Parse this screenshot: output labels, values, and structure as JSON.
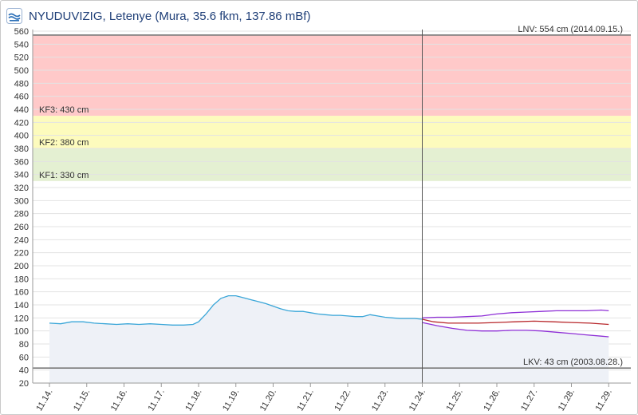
{
  "header": {
    "title": "NYUDUVIZIG, Letenye (Mura, 35.6 fkm, 137.86 mBf)",
    "logo_icon": "nyuduvizig-logo-icon"
  },
  "chart_data": {
    "type": "line",
    "title": "NYUDUVIZIG, Letenye (Mura, 35.6 fkm, 137.86 mBf)",
    "xlabel": "",
    "ylabel": "",
    "ylim": [
      20,
      560
    ],
    "y_ticks": [
      20,
      40,
      60,
      80,
      100,
      120,
      140,
      160,
      180,
      200,
      220,
      240,
      260,
      280,
      300,
      320,
      340,
      360,
      380,
      400,
      420,
      440,
      460,
      480,
      500,
      520,
      540,
      560
    ],
    "x_ticks": [
      {
        "day": 14,
        "label": "11.14."
      },
      {
        "day": 15,
        "label": "11.15."
      },
      {
        "day": 16,
        "label": "11.16."
      },
      {
        "day": 17,
        "label": "11.17."
      },
      {
        "day": 18,
        "label": "11.18."
      },
      {
        "day": 19,
        "label": "11.19."
      },
      {
        "day": 20,
        "label": "11.20."
      },
      {
        "day": 21,
        "label": "11.21."
      },
      {
        "day": 22,
        "label": "11.22."
      },
      {
        "day": 23,
        "label": "11.23."
      },
      {
        "day": 24,
        "label": "11.24."
      },
      {
        "day": 25,
        "label": "11.25."
      },
      {
        "day": 26,
        "label": "11.26."
      },
      {
        "day": 27,
        "label": "11.27."
      },
      {
        "day": 28,
        "label": "11.28."
      },
      {
        "day": 29,
        "label": "11.29."
      }
    ],
    "grid": true,
    "bands": [
      {
        "from": 430,
        "to": 554,
        "color": "#ffc9c9"
      },
      {
        "from": 380,
        "to": 430,
        "color": "#fdfbbd"
      },
      {
        "from": 330,
        "to": 380,
        "color": "#e4f0d2"
      }
    ],
    "threshold_lines": [
      {
        "value": 554,
        "label": "LNV: 554 cm (2014.09.15.)",
        "label_side": "right"
      },
      {
        "value": 430,
        "label": "KF3: 430 cm",
        "label_side": "left"
      },
      {
        "value": 380,
        "label": "KF2: 380 cm",
        "label_side": "left"
      },
      {
        "value": 330,
        "label": "KF1: 330 cm",
        "label_side": "left"
      },
      {
        "value": 43,
        "label": "LKV: 43 cm (2003.08.28.)",
        "label_side": "right"
      }
    ],
    "now_day": 24,
    "series": [
      {
        "color": "#3aa6d8",
        "fill": "#eef1f7",
        "points": [
          [
            14,
            112
          ],
          [
            14.3,
            111
          ],
          [
            14.6,
            114
          ],
          [
            14.9,
            114
          ],
          [
            15.2,
            112
          ],
          [
            15.5,
            111
          ],
          [
            15.8,
            110
          ],
          [
            16.1,
            111
          ],
          [
            16.4,
            110
          ],
          [
            16.7,
            111
          ],
          [
            17.0,
            110
          ],
          [
            17.3,
            109
          ],
          [
            17.6,
            109
          ],
          [
            17.85,
            110
          ],
          [
            18.0,
            114
          ],
          [
            18.2,
            126
          ],
          [
            18.4,
            140
          ],
          [
            18.6,
            150
          ],
          [
            18.8,
            154
          ],
          [
            19.0,
            154
          ],
          [
            19.2,
            151
          ],
          [
            19.4,
            148
          ],
          [
            19.6,
            145
          ],
          [
            19.8,
            142
          ],
          [
            20.0,
            138
          ],
          [
            20.2,
            134
          ],
          [
            20.4,
            131
          ],
          [
            20.6,
            130
          ],
          [
            20.8,
            130
          ],
          [
            21.0,
            128
          ],
          [
            21.2,
            126
          ],
          [
            21.4,
            125
          ],
          [
            21.6,
            124
          ],
          [
            21.8,
            124
          ],
          [
            22.0,
            123
          ],
          [
            22.2,
            122
          ],
          [
            22.4,
            122
          ],
          [
            22.6,
            125
          ],
          [
            22.8,
            123
          ],
          [
            23.0,
            121
          ],
          [
            23.2,
            120
          ],
          [
            23.4,
            119
          ],
          [
            23.6,
            119
          ],
          [
            23.8,
            119
          ],
          [
            24.0,
            118
          ]
        ]
      },
      {
        "color": "#b8282c",
        "points": [
          [
            24.0,
            118
          ],
          [
            24.3,
            114
          ],
          [
            24.7,
            112
          ],
          [
            25.0,
            112
          ],
          [
            25.5,
            112
          ],
          [
            26.0,
            113
          ],
          [
            26.5,
            114
          ],
          [
            27.0,
            115
          ],
          [
            27.5,
            114
          ],
          [
            28.0,
            113
          ],
          [
            28.5,
            112
          ],
          [
            29.0,
            110
          ]
        ]
      },
      {
        "color": "#8e2fd6",
        "points": [
          [
            24.0,
            120
          ],
          [
            24.4,
            121
          ],
          [
            24.8,
            121
          ],
          [
            25.2,
            122
          ],
          [
            25.6,
            123
          ],
          [
            26.0,
            126
          ],
          [
            26.4,
            128
          ],
          [
            26.8,
            129
          ],
          [
            27.2,
            130
          ],
          [
            27.6,
            131
          ],
          [
            28.0,
            131
          ],
          [
            28.4,
            131
          ],
          [
            28.8,
            132
          ],
          [
            29.0,
            131
          ]
        ]
      },
      {
        "color": "#8e2fd6",
        "points": [
          [
            24.0,
            113
          ],
          [
            24.4,
            108
          ],
          [
            24.8,
            104
          ],
          [
            25.2,
            101
          ],
          [
            25.6,
            100
          ],
          [
            26.0,
            100
          ],
          [
            26.4,
            101
          ],
          [
            26.8,
            101
          ],
          [
            27.2,
            100
          ],
          [
            27.6,
            98
          ],
          [
            28.0,
            96
          ],
          [
            28.4,
            94
          ],
          [
            28.8,
            92
          ],
          [
            29.0,
            91
          ]
        ]
      }
    ]
  }
}
